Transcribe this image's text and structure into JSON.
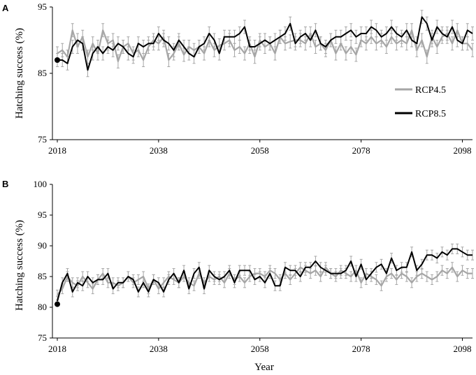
{
  "colors": {
    "rcp45": "#a6a6a6",
    "rcp85": "#000000",
    "axis": "#000000"
  },
  "chart_data": [
    {
      "panel": "A",
      "type": "line",
      "ylabel": "Hatching success (%)",
      "xlabel": "",
      "xlim": [
        2018,
        2100
      ],
      "ylim": [
        75,
        95
      ],
      "xticks": [
        "2018",
        "2038",
        "2058",
        "2078",
        "2098"
      ],
      "yticks": [
        "75",
        "85",
        "95"
      ],
      "legend": "right, middle",
      "start_point": {
        "x": 2018,
        "y": 87
      },
      "series": [
        {
          "name": "RCP4.5",
          "x": [
            2018,
            2019,
            2020,
            2021,
            2022,
            2023,
            2024,
            2025,
            2026,
            2027,
            2028,
            2029,
            2030,
            2031,
            2032,
            2033,
            2034,
            2035,
            2036,
            2037,
            2038,
            2039,
            2040,
            2041,
            2042,
            2043,
            2044,
            2045,
            2046,
            2047,
            2048,
            2049,
            2050,
            2051,
            2052,
            2053,
            2054,
            2055,
            2056,
            2057,
            2058,
            2059,
            2060,
            2061,
            2062,
            2063,
            2064,
            2065,
            2066,
            2067,
            2068,
            2069,
            2070,
            2071,
            2072,
            2073,
            2074,
            2075,
            2076,
            2077,
            2078,
            2079,
            2080,
            2081,
            2082,
            2083,
            2084,
            2085,
            2086,
            2087,
            2088,
            2089,
            2090,
            2091,
            2092,
            2093,
            2094,
            2095,
            2096,
            2097,
            2098,
            2099,
            2100
          ],
          "values": [
            88,
            88.5,
            87.5,
            91.5,
            89,
            90.5,
            87.5,
            89.5,
            88,
            91.5,
            89.5,
            90,
            86.8,
            89,
            89.5,
            88,
            88.5,
            87,
            89,
            90,
            89.5,
            90.5,
            87,
            88,
            89.5,
            87.8,
            89,
            88.5,
            89,
            88,
            90,
            88.5,
            89.2,
            89.5,
            90,
            88.5,
            89,
            88,
            89.5,
            87.5,
            90,
            89,
            89.5,
            88,
            90.5,
            89.5,
            89.8,
            90,
            90,
            89.5,
            91,
            89,
            89.5,
            88.5,
            90,
            88,
            89.5,
            88,
            89,
            87.8,
            90,
            89.5,
            90.5,
            89.5,
            90,
            89,
            90.5,
            89.5,
            90,
            89.5,
            91.5,
            88.5,
            90,
            87.5,
            90.5,
            89,
            90.5,
            91,
            89.5,
            91.5,
            89.5,
            89.5,
            88.5
          ],
          "error_bar": 1
        },
        {
          "name": "RCP8.5",
          "x": [
            2018,
            2019,
            2020,
            2021,
            2022,
            2023,
            2024,
            2025,
            2026,
            2027,
            2028,
            2029,
            2030,
            2031,
            2032,
            2033,
            2034,
            2035,
            2036,
            2037,
            2038,
            2039,
            2040,
            2041,
            2042,
            2043,
            2044,
            2045,
            2046,
            2047,
            2048,
            2049,
            2050,
            2051,
            2052,
            2053,
            2054,
            2055,
            2056,
            2057,
            2058,
            2059,
            2060,
            2061,
            2062,
            2063,
            2064,
            2065,
            2066,
            2067,
            2068,
            2069,
            2070,
            2071,
            2072,
            2073,
            2074,
            2075,
            2076,
            2077,
            2078,
            2079,
            2080,
            2081,
            2082,
            2083,
            2084,
            2085,
            2086,
            2087,
            2088,
            2089,
            2090,
            2091,
            2092,
            2093,
            2094,
            2095,
            2096,
            2097,
            2098,
            2099,
            2100
          ],
          "values": [
            87,
            87,
            86.5,
            89,
            90,
            89.5,
            85.5,
            88,
            89,
            88,
            89,
            88.5,
            89.5,
            89,
            88,
            87.5,
            89.5,
            89,
            89.5,
            89.5,
            91,
            90,
            89.5,
            88.5,
            90,
            89,
            88,
            87.5,
            89,
            89.5,
            91,
            90,
            88,
            90.5,
            90.5,
            90.5,
            91,
            92,
            89,
            89,
            89.5,
            90,
            89.5,
            90,
            90.5,
            91,
            92.5,
            89.5,
            90.5,
            91,
            90,
            91.5,
            89.5,
            89,
            90,
            90.5,
            90.5,
            91,
            91.5,
            90.5,
            91,
            91,
            92,
            91.5,
            90.5,
            91,
            92,
            91,
            90.5,
            91.5,
            90,
            89.5,
            93.5,
            92.5,
            90,
            92,
            91,
            90.5,
            92,
            90,
            89.5,
            91.5,
            91
          ],
          "error_bar": 1
        }
      ]
    },
    {
      "panel": "B",
      "type": "line",
      "ylabel": "Hatching success (%)",
      "xlabel": "Year",
      "xlim": [
        2018,
        2100
      ],
      "ylim": [
        75,
        100
      ],
      "xticks": [
        "2018",
        "2038",
        "2058",
        "2078",
        "2098"
      ],
      "yticks": [
        "75",
        "80",
        "85",
        "90",
        "95",
        "100"
      ],
      "start_point": {
        "x": 2018,
        "y": 80.5
      },
      "series": [
        {
          "name": "RCP4.5",
          "x": [
            2018,
            2019,
            2020,
            2021,
            2022,
            2023,
            2024,
            2025,
            2026,
            2027,
            2028,
            2029,
            2030,
            2031,
            2032,
            2033,
            2034,
            2035,
            2036,
            2037,
            2038,
            2039,
            2040,
            2041,
            2042,
            2043,
            2044,
            2045,
            2046,
            2047,
            2048,
            2049,
            2050,
            2051,
            2052,
            2053,
            2054,
            2055,
            2056,
            2057,
            2058,
            2059,
            2060,
            2061,
            2062,
            2063,
            2064,
            2065,
            2066,
            2067,
            2068,
            2069,
            2070,
            2071,
            2072,
            2073,
            2074,
            2075,
            2076,
            2077,
            2078,
            2079,
            2080,
            2081,
            2082,
            2083,
            2084,
            2085,
            2086,
            2087,
            2088,
            2089,
            2090,
            2091,
            2092,
            2093,
            2094,
            2095,
            2096,
            2097,
            2098,
            2099,
            2100
          ],
          "values": [
            82,
            83,
            85,
            84,
            83.5,
            85,
            84,
            83,
            84.5,
            85.5,
            84,
            84,
            83.5,
            84,
            85,
            84,
            84.5,
            85,
            83,
            84.5,
            83,
            84,
            85,
            84.5,
            84,
            85,
            84,
            83.5,
            85.5,
            84,
            85,
            84.5,
            85,
            84,
            85.5,
            84.5,
            85,
            84,
            85,
            85.5,
            85.5,
            85,
            86,
            85.5,
            84.5,
            85.5,
            84.5,
            85.5,
            86.5,
            86,
            85.5,
            86,
            85,
            86.5,
            85.5,
            85,
            86,
            85.5,
            85,
            86,
            84,
            85.5,
            85,
            84.5,
            83.5,
            85,
            85.5,
            84.5,
            85.5,
            85,
            84,
            85,
            85.5,
            85,
            84.5,
            85,
            86,
            85.5,
            86.5,
            85,
            86,
            85.5,
            85.5
          ],
          "error_bar": 0.8
        },
        {
          "name": "RCP8.5",
          "x": [
            2018,
            2019,
            2020,
            2021,
            2022,
            2023,
            2024,
            2025,
            2026,
            2027,
            2028,
            2029,
            2030,
            2031,
            2032,
            2033,
            2034,
            2035,
            2036,
            2037,
            2038,
            2039,
            2040,
            2041,
            2042,
            2043,
            2044,
            2045,
            2046,
            2047,
            2048,
            2049,
            2050,
            2051,
            2052,
            2053,
            2054,
            2055,
            2056,
            2057,
            2058,
            2059,
            2060,
            2061,
            2062,
            2063,
            2064,
            2065,
            2066,
            2067,
            2068,
            2069,
            2070,
            2071,
            2072,
            2073,
            2074,
            2075,
            2076,
            2077,
            2078,
            2079,
            2080,
            2081,
            2082,
            2083,
            2084,
            2085,
            2086,
            2087,
            2088,
            2089,
            2090,
            2091,
            2092,
            2093,
            2094,
            2095,
            2096,
            2097,
            2098,
            2099,
            2100
          ],
          "values": [
            81,
            84,
            85.5,
            82.5,
            84,
            83.5,
            85,
            84,
            84.5,
            84.5,
            85.5,
            83,
            84,
            84,
            85,
            84.5,
            82.5,
            84,
            82.5,
            84.5,
            84,
            82.5,
            84.5,
            85.5,
            84,
            86,
            83,
            85.5,
            86.5,
            83,
            86,
            85,
            84.5,
            85,
            86,
            84,
            86,
            86,
            86,
            84.5,
            85,
            84,
            85.5,
            83.5,
            83.5,
            86.5,
            86,
            86,
            85,
            86.5,
            86.5,
            87.5,
            86.5,
            86,
            85.5,
            85.5,
            85.5,
            86,
            87.5,
            85,
            87,
            84.5,
            85.5,
            86.5,
            87,
            85.5,
            88,
            86,
            86.5,
            86.5,
            89,
            86,
            87,
            88.5,
            88.5,
            88,
            89,
            88.5,
            89.5,
            89.5,
            89,
            88.5,
            88.5
          ],
          "error_bar": 0.8
        }
      ]
    }
  ]
}
